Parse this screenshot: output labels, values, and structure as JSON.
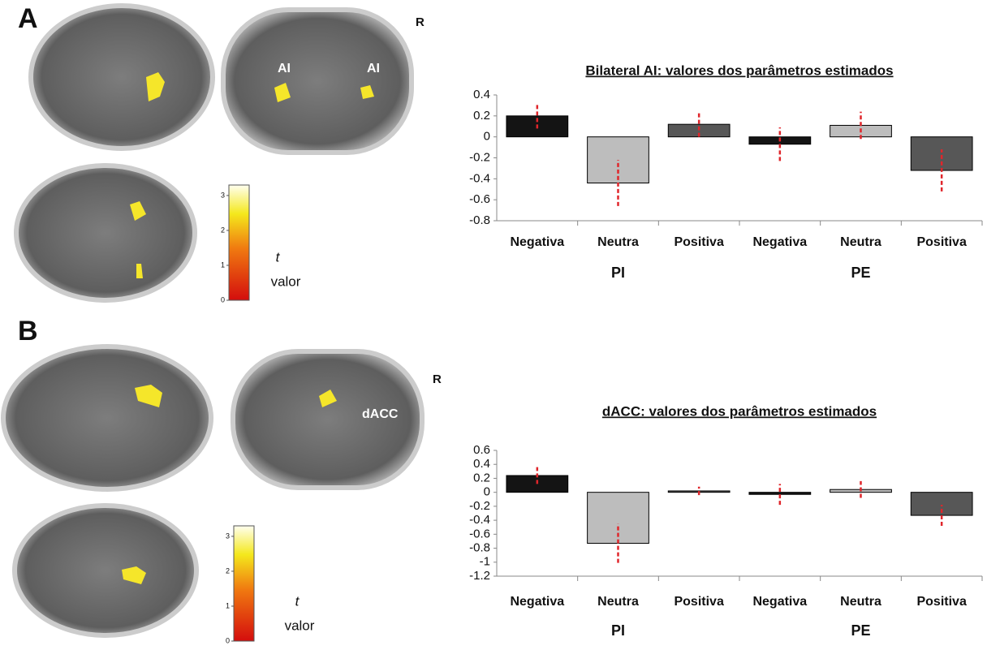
{
  "panels": [
    {
      "label": "A",
      "side_label": "R",
      "roi_labels": [
        "AI",
        "AI"
      ],
      "colorbar": {
        "lim": [
          0,
          3.3
        ],
        "ticks": [
          0,
          1,
          2,
          3
        ],
        "symbol": "t",
        "label": "valor"
      }
    },
    {
      "label": "B",
      "side_label": "R",
      "roi_labels": [
        "dACC"
      ],
      "colorbar": {
        "lim": [
          0,
          3.3
        ],
        "ticks": [
          0,
          1,
          2,
          3
        ],
        "symbol": "t",
        "label": "valor"
      }
    }
  ],
  "chart_data": [
    {
      "type": "bar",
      "title": "Bilateral AI: valores dos parâmetros estimados",
      "categories": [
        "Negativa",
        "Neutra",
        "Positiva",
        "Negativa",
        "Neutra",
        "Positiva"
      ],
      "groups": [
        "PI",
        "PE"
      ],
      "values": [
        0.2,
        -0.44,
        0.12,
        -0.07,
        0.11,
        -0.32
      ],
      "errors": [
        0.12,
        0.22,
        0.12,
        0.16,
        0.13,
        0.2
      ],
      "colors": [
        "#141414",
        "#bdbdbd",
        "#575757",
        "#141414",
        "#bdbdbd",
        "#575757"
      ],
      "error_color": "#e0262b",
      "ylim": [
        -0.8,
        0.4
      ],
      "yticks": [
        -0.8,
        -0.6,
        -0.4,
        -0.2,
        0,
        0.2,
        0.4
      ]
    },
    {
      "type": "bar",
      "title": "dACC: valores dos parâmetros estimados",
      "categories": [
        "Negativa",
        "Neutra",
        "Positiva",
        "Negativa",
        "Neutra",
        "Positiva"
      ],
      "groups": [
        "PI",
        "PE"
      ],
      "values": [
        0.24,
        -0.73,
        0.02,
        -0.03,
        0.04,
        -0.33
      ],
      "errors": [
        0.12,
        0.28,
        0.06,
        0.15,
        0.12,
        0.15
      ],
      "colors": [
        "#141414",
        "#bdbdbd",
        "#575757",
        "#141414",
        "#bdbdbd",
        "#575757"
      ],
      "error_color": "#e0262b",
      "ylim": [
        -1.2,
        0.6
      ],
      "yticks": [
        -1.2,
        -1,
        -0.8,
        -0.6,
        -0.4,
        -0.2,
        0,
        0.2,
        0.4,
        0.6
      ]
    }
  ]
}
